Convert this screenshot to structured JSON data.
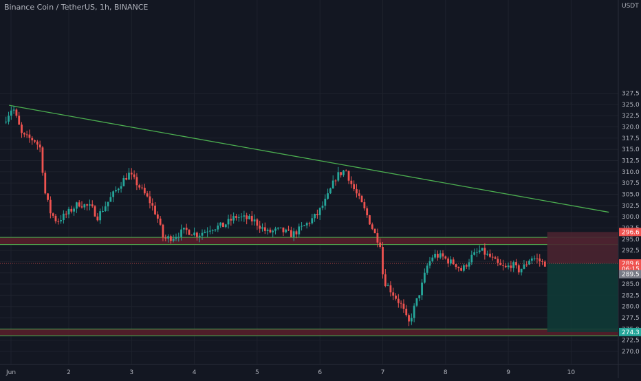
{
  "header": {
    "symbol_title": "Binance Coin / TetherUS, 1h, BINANCE"
  },
  "price_axis": {
    "unit": "USDT"
  },
  "colors": {
    "background": "#131722",
    "grid": "#1e222d",
    "up": "#26a69a",
    "down": "#ef5350",
    "trendline": "#4caf50",
    "zone_fill": "#5b1f2a",
    "zone_border": "#4caf50",
    "stop_fill": "#4a2430",
    "target_fill": "#0f3a36",
    "axis_text": "#b2b5be"
  },
  "chart_data": {
    "type": "candlestick",
    "title": "Binance Coin / TetherUS, 1h, BINANCE",
    "ylabel": "USDT",
    "ylim": [
      268.5,
      329.0
    ],
    "y_ticks": [
      "327.5",
      "325.0",
      "322.5",
      "320.0",
      "317.5",
      "315.0",
      "312.5",
      "310.0",
      "307.5",
      "305.0",
      "302.5",
      "300.0",
      "297.5",
      "295.0",
      "292.5",
      "290.0",
      "287.5",
      "285.0",
      "282.5",
      "280.0",
      "277.5",
      "275.0",
      "272.5",
      "270.0"
    ],
    "x_ticks": [
      {
        "label": "Jun",
        "day": 1.08
      },
      {
        "label": "2",
        "day": 2
      },
      {
        "label": "3",
        "day": 3
      },
      {
        "label": "4",
        "day": 4
      },
      {
        "label": "5",
        "day": 5
      },
      {
        "label": "6",
        "day": 6
      },
      {
        "label": "7",
        "day": 7
      },
      {
        "label": "8",
        "day": 8
      },
      {
        "label": "9",
        "day": 9
      },
      {
        "label": "10",
        "day": 10
      }
    ],
    "price_path_approx": [
      [
        1.0,
        321.0
      ],
      [
        1.15,
        324.5
      ],
      [
        1.3,
        318.0
      ],
      [
        1.5,
        317.0
      ],
      [
        1.6,
        315.0
      ],
      [
        1.65,
        306.0
      ],
      [
        1.75,
        301.0
      ],
      [
        1.85,
        299.0
      ],
      [
        2.0,
        300.5
      ],
      [
        2.2,
        303.0
      ],
      [
        2.4,
        302.0
      ],
      [
        2.5,
        300.0
      ],
      [
        2.7,
        304.0
      ],
      [
        2.9,
        308.0
      ],
      [
        3.0,
        309.5
      ],
      [
        3.15,
        307.0
      ],
      [
        3.35,
        303.0
      ],
      [
        3.45,
        300.0
      ],
      [
        3.55,
        295.0
      ],
      [
        3.7,
        295.5
      ],
      [
        3.9,
        297.0
      ],
      [
        4.1,
        296.0
      ],
      [
        4.3,
        297.5
      ],
      [
        4.5,
        298.0
      ],
      [
        4.7,
        300.0
      ],
      [
        4.9,
        299.5
      ],
      [
        5.0,
        299.0
      ],
      [
        5.2,
        296.5
      ],
      [
        5.4,
        297.0
      ],
      [
        5.6,
        296.0
      ],
      [
        5.8,
        298.0
      ],
      [
        6.0,
        300.5
      ],
      [
        6.15,
        304.0
      ],
      [
        6.3,
        309.0
      ],
      [
        6.45,
        310.5
      ],
      [
        6.55,
        307.0
      ],
      [
        6.7,
        303.0
      ],
      [
        6.8,
        300.0
      ],
      [
        6.92,
        296.0
      ],
      [
        7.0,
        294.0
      ],
      [
        7.05,
        286.0
      ],
      [
        7.2,
        283.0
      ],
      [
        7.35,
        280.0
      ],
      [
        7.45,
        276.0
      ],
      [
        7.55,
        280.0
      ],
      [
        7.65,
        284.0
      ],
      [
        7.75,
        289.0
      ],
      [
        7.85,
        291.5
      ],
      [
        8.0,
        291.0
      ],
      [
        8.1,
        290.0
      ],
      [
        8.2,
        289.5
      ],
      [
        8.3,
        288.0
      ],
      [
        8.45,
        291.0
      ],
      [
        8.6,
        292.5
      ],
      [
        8.75,
        291.0
      ],
      [
        8.9,
        289.0
      ],
      [
        9.0,
        288.5
      ],
      [
        9.1,
        289.5
      ],
      [
        9.2,
        288.0
      ],
      [
        9.3,
        289.0
      ],
      [
        9.4,
        291.0
      ],
      [
        9.5,
        290.5
      ],
      [
        9.6,
        289.6
      ]
    ],
    "annotations": {
      "trendline": {
        "from": {
          "day": 1.05,
          "price": 324.8
        },
        "to": {
          "day": 10.6,
          "price": 301.0
        }
      },
      "resistance_zone": {
        "top": 295.4,
        "bottom": 293.8
      },
      "support_zone": {
        "top": 275.0,
        "bottom": 273.5
      },
      "position": {
        "entry": 289.6,
        "stop": 296.6,
        "target": 274.3,
        "from_day": 9.62,
        "to_day": 10.6
      },
      "last_price_line": 289.6
    },
    "price_labels": [
      {
        "text": "296.6",
        "price": 296.6,
        "color": "#ef5350"
      },
      {
        "text": "289.6",
        "price": 289.6,
        "color": "#ef5350"
      },
      {
        "text": "06:15",
        "price": 288.4,
        "color": "#ef5350"
      },
      {
        "text": "289.5",
        "price": 287.2,
        "color": "#787b86"
      },
      {
        "text": "274.3",
        "price": 274.3,
        "color": "#26a69a"
      }
    ]
  }
}
